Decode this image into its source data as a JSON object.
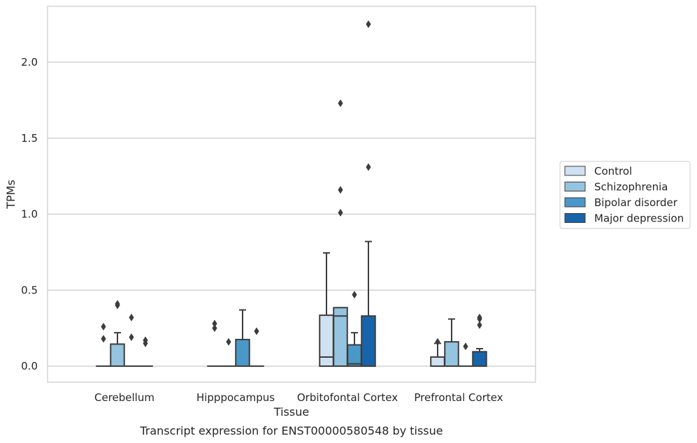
{
  "chart_data": {
    "type": "boxplot",
    "caption": "Transcript expression for ENST00000580548 by tissue",
    "xlabel": "Tissue",
    "ylabel": "TPMs",
    "ylim": [
      -0.11,
      2.36
    ],
    "yticks": [
      0.0,
      0.5,
      1.0,
      1.5,
      2.0
    ],
    "ytick_labels": [
      "0.0",
      "0.5",
      "1.0",
      "1.5",
      "2.0"
    ],
    "grid": "horizontal",
    "legend_position": "right",
    "categories": [
      "Cerebellum",
      "Hipppocampus",
      "Orbitofontal Cortex",
      "Prefrontal Cortex"
    ],
    "series": [
      {
        "name": "Control",
        "color": "#d0e1f2",
        "boxes": [
          {
            "q1": 0,
            "median": 0,
            "q3": 0,
            "whisker_low": 0,
            "whisker_high": 0,
            "outliers": [
              0.26,
              0.18
            ]
          },
          {
            "q1": 0,
            "median": 0,
            "q3": 0,
            "whisker_low": 0,
            "whisker_high": 0,
            "outliers": [
              0.28,
              0.25
            ]
          },
          {
            "q1": 0,
            "median": 0.06,
            "q3": 0.335,
            "whisker_low": 0,
            "whisker_high": 0.745,
            "outliers": []
          },
          {
            "q1": 0,
            "median": 0,
            "q3": 0.06,
            "whisker_low": 0,
            "whisker_high": 0.15,
            "outliers": [
              0.16
            ]
          }
        ]
      },
      {
        "name": "Schizophrenia",
        "color": "#94c4df",
        "boxes": [
          {
            "q1": 0,
            "median": 0,
            "q3": 0.145,
            "whisker_low": 0,
            "whisker_high": 0.22,
            "outliers": [
              0.41,
              0.4
            ]
          },
          {
            "q1": 0,
            "median": 0,
            "q3": 0,
            "whisker_low": 0,
            "whisker_high": 0,
            "outliers": [
              0.16
            ]
          },
          {
            "q1": 0,
            "median": 0.33,
            "q3": 0.385,
            "whisker_low": 0,
            "whisker_high": 0.385,
            "outliers": [
              1.73,
              1.16,
              1.01
            ]
          },
          {
            "q1": 0,
            "median": 0,
            "q3": 0.16,
            "whisker_low": 0,
            "whisker_high": 0.31,
            "outliers": []
          }
        ]
      },
      {
        "name": "Bipolar disorder",
        "color": "#4a98c9",
        "boxes": [
          {
            "q1": 0,
            "median": 0,
            "q3": 0,
            "whisker_low": 0,
            "whisker_high": 0,
            "outliers": [
              0.32,
              0.19
            ]
          },
          {
            "q1": 0,
            "median": 0,
            "q3": 0.175,
            "whisker_low": 0,
            "whisker_high": 0.37,
            "outliers": []
          },
          {
            "q1": 0,
            "median": 0.015,
            "q3": 0.14,
            "whisker_low": 0,
            "whisker_high": 0.22,
            "outliers": [
              0.47
            ]
          },
          {
            "q1": 0,
            "median": 0,
            "q3": 0,
            "whisker_low": 0,
            "whisker_high": 0,
            "outliers": [
              0.13
            ]
          }
        ]
      },
      {
        "name": "Major depression",
        "color": "#1764ab",
        "boxes": [
          {
            "q1": 0,
            "median": 0,
            "q3": 0,
            "whisker_low": 0,
            "whisker_high": 0,
            "outliers": [
              0.17,
              0.15
            ]
          },
          {
            "q1": 0,
            "median": 0,
            "q3": 0,
            "whisker_low": 0,
            "whisker_high": 0,
            "outliers": [
              0.23
            ]
          },
          {
            "q1": 0,
            "median": 0,
            "q3": 0.33,
            "whisker_low": 0,
            "whisker_high": 0.82,
            "outliers": [
              2.25,
              1.31
            ]
          },
          {
            "q1": 0,
            "median": 0,
            "q3": 0.095,
            "whisker_low": 0,
            "whisker_high": 0.115,
            "outliers": [
              0.32,
              0.31,
              0.27
            ]
          }
        ]
      }
    ]
  }
}
